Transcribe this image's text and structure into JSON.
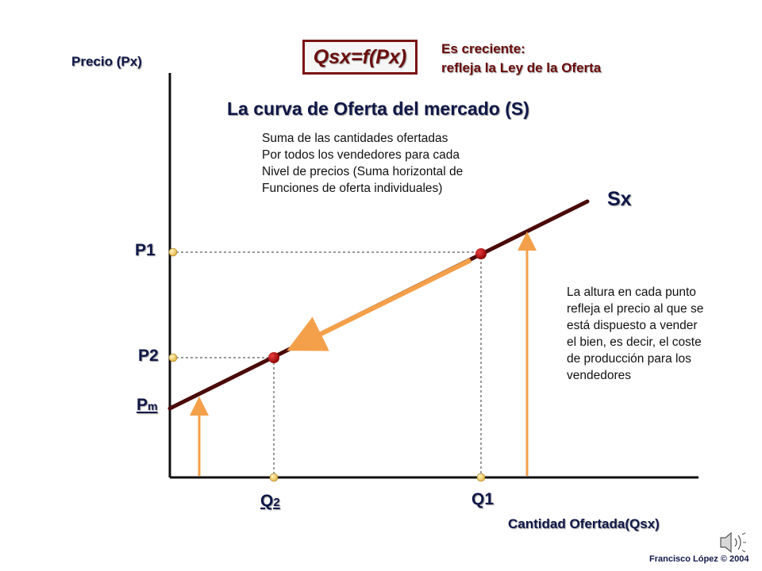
{
  "labels": {
    "formula": "Qsx=f(Px)",
    "increasing_note_line1": "Es creciente:",
    "increasing_note_line2": "refleja la Ley de la Oferta",
    "title": "La curva de Oferta del mercado (S)",
    "sum_note": [
      "Suma de las cantidades ofertadas",
      "Por todos los vendedores para cada",
      "Nivel de precios (Suma horizontal de",
      "Funciones de oferta individuales)"
    ],
    "curve_label": "Sx",
    "height_note": [
      "La altura en cada punto",
      "refleja el precio al que se",
      "está dispuesto a vender",
      "el bien, es decir, el coste",
      "de producción para los",
      "vendedores"
    ],
    "y_axis": "Precio (Px)",
    "x_axis": "Cantidad Ofertada(Qsx)",
    "p1": "P1",
    "p2": "P2",
    "pm_main": "P",
    "pm_sub": "m",
    "q1": "Q1",
    "q2_main": "Q",
    "q2_sub": "2",
    "credit": "Francisco López © 2004"
  },
  "colors": {
    "curve": "#4a0a0a",
    "arrow": "#f4a04a",
    "point": "#b30a0a",
    "marker": "#f2c860",
    "axis": "#101010"
  },
  "icons": {
    "speaker": "speaker-icon"
  }
}
